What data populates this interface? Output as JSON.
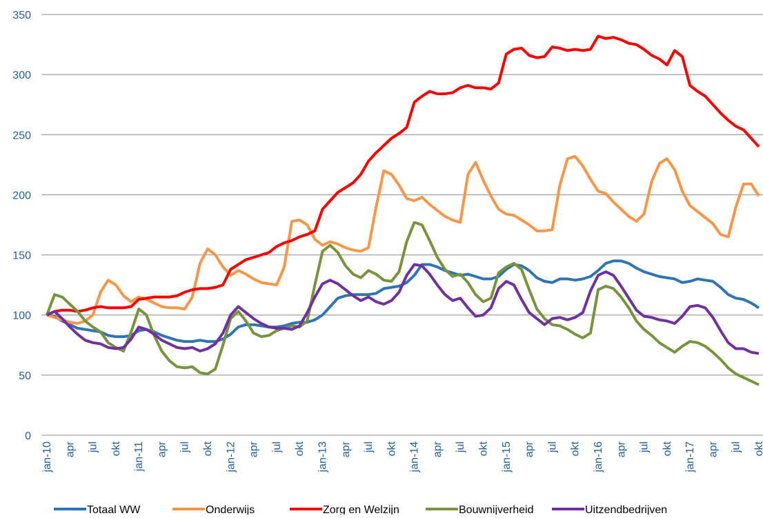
{
  "chart_data": {
    "type": "line",
    "categories": [
      "jan-10",
      null,
      null,
      "apr",
      null,
      null,
      "jul",
      null,
      null,
      "okt",
      null,
      null,
      "jan-11",
      null,
      null,
      "apr",
      null,
      null,
      "jul",
      null,
      null,
      "okt",
      null,
      null,
      "jan-12",
      null,
      null,
      "apr",
      null,
      null,
      "jul",
      null,
      null,
      "okt",
      null,
      null,
      "jan-13",
      null,
      null,
      "apr",
      null,
      null,
      "jul",
      null,
      null,
      "okt",
      null,
      null,
      "jan-14",
      null,
      null,
      "apr",
      null,
      null,
      "jul",
      null,
      null,
      "okt",
      null,
      null,
      "jan-15",
      null,
      null,
      "apr",
      null,
      null,
      "jul",
      null,
      null,
      "okt",
      null,
      null,
      "jan-16",
      null,
      null,
      "apr",
      null,
      null,
      "jul",
      null,
      null,
      "okt",
      null,
      null,
      "jan-17",
      null,
      null,
      "apr",
      null,
      null,
      "jul",
      null,
      null,
      "okt"
    ],
    "series": [
      {
        "name": "Totaal WW",
        "color": "#2e75b6",
        "values": [
          100,
          99,
          95,
          92,
          89,
          88,
          87,
          86,
          83,
          82,
          82,
          83,
          87,
          88,
          86,
          83,
          81,
          79,
          78,
          78,
          79,
          78,
          78,
          80,
          84,
          90,
          92,
          92,
          91,
          90,
          90,
          91,
          93,
          94,
          94,
          96,
          100,
          107,
          114,
          116,
          117,
          117,
          117,
          118,
          122,
          123,
          124,
          127,
          133,
          142,
          142,
          140,
          137,
          135,
          133,
          134,
          132,
          130,
          130,
          132,
          138,
          142,
          141,
          137,
          131,
          128,
          127,
          130,
          130,
          129,
          130,
          132,
          137,
          143,
          145,
          145,
          143,
          139,
          136,
          134,
          132,
          131,
          130,
          127,
          128,
          130,
          129,
          128,
          123,
          117,
          114,
          113,
          110,
          106
        ]
      },
      {
        "name": "Onderwijs",
        "color": "#f79646",
        "values": [
          100,
          98,
          96,
          94,
          93,
          95,
          100,
          119,
          129,
          125,
          116,
          111,
          115,
          113,
          110,
          107,
          106,
          106,
          105,
          115,
          143,
          155,
          150,
          140,
          133,
          137,
          134,
          130,
          127,
          126,
          125,
          140,
          178,
          179,
          175,
          163,
          158,
          161,
          159,
          156,
          154,
          153,
          156,
          190,
          220,
          217,
          208,
          197,
          195,
          198,
          192,
          187,
          182,
          179,
          177,
          217,
          227,
          212,
          199,
          188,
          184,
          183,
          179,
          175,
          170,
          170,
          171,
          208,
          230,
          232,
          224,
          213,
          203,
          201,
          194,
          188,
          182,
          178,
          184,
          211,
          226,
          230,
          221,
          203,
          191,
          186,
          181,
          176,
          167,
          165,
          190,
          209,
          209,
          199
        ]
      },
      {
        "name": "Zorg en Welzijn",
        "color": "#ff0000",
        "values": [
          100,
          103,
          104,
          104,
          103,
          104,
          106,
          107,
          106,
          106,
          106,
          107,
          113,
          114,
          115,
          115,
          115,
          116,
          119,
          121,
          122,
          122,
          123,
          125,
          138,
          142,
          146,
          148,
          150,
          152,
          157,
          160,
          162,
          165,
          167,
          170,
          188,
          195,
          202,
          206,
          210,
          217,
          228,
          235,
          241,
          247,
          251,
          256,
          277,
          282,
          286,
          284,
          284,
          285,
          289,
          291,
          289,
          289,
          288,
          293,
          317,
          321,
          322,
          316,
          314,
          315,
          323,
          322,
          320,
          321,
          320,
          321,
          332,
          330,
          331,
          329,
          326,
          325,
          321,
          316,
          313,
          308,
          320,
          315,
          291,
          286,
          282,
          275,
          268,
          262,
          257,
          254,
          247,
          240
        ]
      },
      {
        "name": "Bouwnijverheid",
        "color": "#77933c",
        "values": [
          100,
          117,
          115,
          109,
          103,
          95,
          90,
          86,
          77,
          73,
          70,
          86,
          105,
          100,
          83,
          70,
          62,
          57,
          56,
          57,
          52,
          51,
          55,
          75,
          97,
          103,
          95,
          85,
          82,
          83,
          87,
          89,
          91,
          90,
          95,
          125,
          153,
          158,
          152,
          141,
          134,
          131,
          137,
          134,
          129,
          128,
          136,
          161,
          177,
          175,
          162,
          148,
          138,
          132,
          134,
          127,
          117,
          111,
          114,
          135,
          140,
          143,
          138,
          121,
          105,
          97,
          92,
          91,
          88,
          84,
          81,
          85,
          121,
          124,
          122,
          115,
          106,
          95,
          88,
          83,
          77,
          73,
          69,
          74,
          78,
          77,
          74,
          69,
          63,
          56,
          51,
          48,
          45,
          42
        ]
      },
      {
        "name": "Uitzendbedrijven",
        "color": "#7030a0",
        "values": [
          100,
          103,
          97,
          90,
          84,
          79,
          77,
          76,
          73,
          72,
          73,
          80,
          90,
          88,
          84,
          79,
          76,
          73,
          72,
          73,
          70,
          72,
          76,
          85,
          100,
          107,
          102,
          97,
          93,
          90,
          89,
          89,
          88,
          91,
          102,
          115,
          126,
          129,
          126,
          121,
          116,
          112,
          115,
          111,
          109,
          112,
          119,
          133,
          142,
          141,
          134,
          125,
          117,
          112,
          114,
          106,
          99,
          100,
          106,
          122,
          128,
          125,
          113,
          102,
          97,
          92,
          97,
          98,
          96,
          98,
          102,
          120,
          133,
          136,
          133,
          124,
          114,
          104,
          99,
          98,
          96,
          95,
          93,
          99,
          107,
          108,
          106,
          98,
          87,
          77,
          72,
          72,
          69,
          68
        ]
      }
    ],
    "ylim": [
      0,
      350
    ],
    "yticks": [
      0,
      50,
      100,
      150,
      200,
      250,
      300,
      350
    ],
    "grid": true,
    "legend": "bottom"
  }
}
